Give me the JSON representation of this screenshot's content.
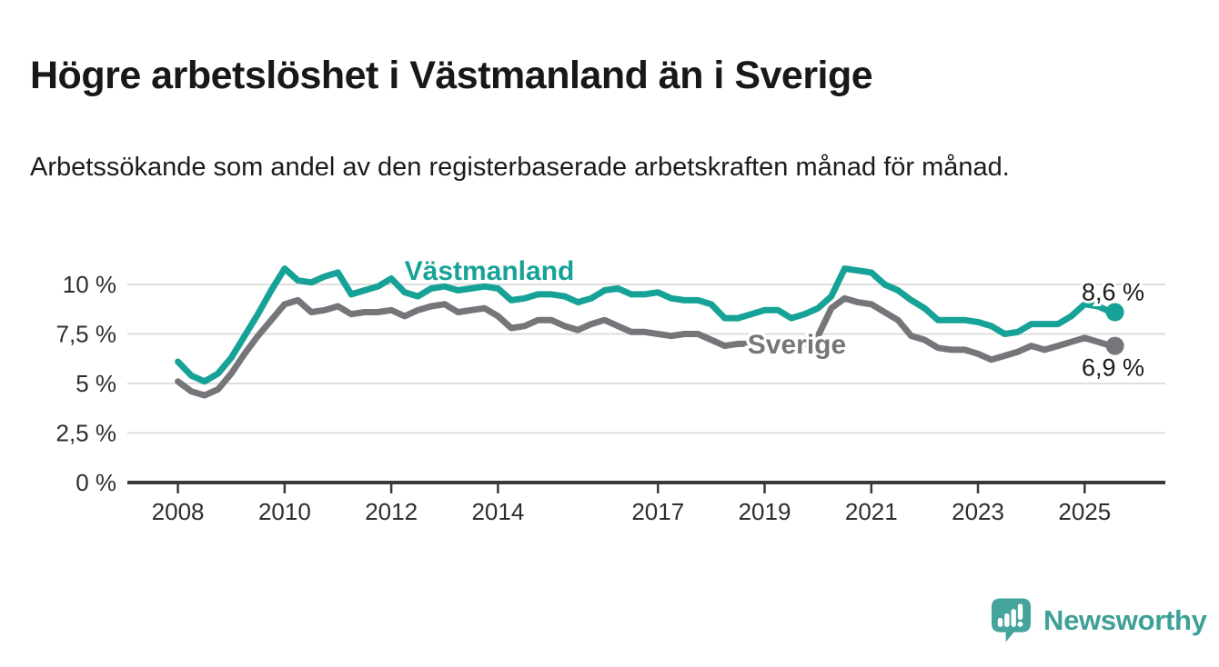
{
  "header": {
    "title": "Högre arbetslöshet i Västmanland än i Sverige",
    "subtitle": "Arbetssökande som andel av den registerbaserade arbetskraften månad för månad."
  },
  "chart_data": {
    "type": "line",
    "title": "Högre arbetslöshet i Västmanland än i Sverige",
    "subtitle": "Arbetssökande som andel av den registerbaserade arbetskraften månad för månad.",
    "unit": "%",
    "grid": true,
    "ylim": [
      0,
      11
    ],
    "xlim": [
      2007.9,
      2025.75
    ],
    "x": [
      2008,
      2008.25,
      2008.5,
      2008.75,
      2009,
      2009.25,
      2009.5,
      2009.75,
      2010,
      2010.25,
      2010.5,
      2010.75,
      2011,
      2011.25,
      2011.5,
      2011.75,
      2012,
      2012.25,
      2012.5,
      2012.75,
      2013,
      2013.25,
      2013.5,
      2013.75,
      2014,
      2014.25,
      2014.5,
      2014.75,
      2015,
      2015.25,
      2015.5,
      2015.75,
      2016,
      2016.25,
      2016.5,
      2016.75,
      2017,
      2017.25,
      2017.5,
      2017.75,
      2018,
      2018.25,
      2018.5,
      2018.75,
      2019,
      2019.25,
      2019.5,
      2019.75,
      2020,
      2020.25,
      2020.5,
      2020.75,
      2021,
      2021.25,
      2021.5,
      2021.75,
      2022,
      2022.25,
      2022.5,
      2022.75,
      2023,
      2023.25,
      2023.5,
      2023.75,
      2024,
      2024.25,
      2024.5,
      2024.75,
      2025,
      2025.25,
      2025.5
    ],
    "series": [
      {
        "name": "Sverige",
        "color": "#76767A",
        "end_label": "6,9 %",
        "end_value": 6.9,
        "values": [
          5.1,
          4.6,
          4.4,
          4.7,
          5.5,
          6.5,
          7.4,
          8.2,
          9.0,
          9.2,
          8.6,
          8.7,
          8.9,
          8.5,
          8.6,
          8.6,
          8.7,
          8.4,
          8.7,
          8.9,
          9.0,
          8.6,
          8.7,
          8.8,
          8.4,
          7.8,
          7.9,
          8.2,
          8.2,
          7.9,
          7.7,
          8.0,
          8.2,
          7.9,
          7.6,
          7.6,
          7.5,
          7.4,
          7.5,
          7.5,
          7.2,
          6.9,
          7.0,
          7.0,
          7.0,
          6.9,
          6.9,
          7.0,
          7.4,
          8.8,
          9.3,
          9.1,
          9.0,
          8.6,
          8.2,
          7.4,
          7.2,
          6.8,
          6.7,
          6.7,
          6.5,
          6.2,
          6.4,
          6.6,
          6.9,
          6.7,
          6.9,
          7.1,
          7.3,
          7.1,
          6.9
        ]
      },
      {
        "name": "Västmanland",
        "color": "#16A296",
        "end_label": "8,6 %",
        "end_value": 8.6,
        "values": [
          6.1,
          5.4,
          5.1,
          5.5,
          6.3,
          7.4,
          8.5,
          9.7,
          10.8,
          10.2,
          10.1,
          10.4,
          10.6,
          9.5,
          9.7,
          9.9,
          10.3,
          9.6,
          9.4,
          9.8,
          9.9,
          9.7,
          9.8,
          9.9,
          9.8,
          9.2,
          9.3,
          9.5,
          9.5,
          9.4,
          9.1,
          9.3,
          9.7,
          9.8,
          9.5,
          9.5,
          9.6,
          9.3,
          9.2,
          9.2,
          9.0,
          8.3,
          8.3,
          8.5,
          8.7,
          8.7,
          8.3,
          8.5,
          8.8,
          9.4,
          10.8,
          10.7,
          10.6,
          10.0,
          9.7,
          9.2,
          8.8,
          8.2,
          8.2,
          8.2,
          8.1,
          7.9,
          7.5,
          7.6,
          8.0,
          8.0,
          8.0,
          8.4,
          9.0,
          8.9,
          8.6
        ]
      }
    ],
    "yticks": [
      {
        "value": 0,
        "label": "0 %"
      },
      {
        "value": 2.5,
        "label": "2,5 %"
      },
      {
        "value": 5,
        "label": "5 %"
      },
      {
        "value": 7.5,
        "label": "7,5 %"
      },
      {
        "value": 10,
        "label": "10 %"
      }
    ],
    "xticks": [
      {
        "value": 2008,
        "label": "2008"
      },
      {
        "value": 2010,
        "label": "2010"
      },
      {
        "value": 2012,
        "label": "2012"
      },
      {
        "value": 2014,
        "label": "2014"
      },
      {
        "value": 2017,
        "label": "2017"
      },
      {
        "value": 2019,
        "label": "2019"
      },
      {
        "value": 2021,
        "label": "2021"
      },
      {
        "value": 2023,
        "label": "2023"
      },
      {
        "value": 2025,
        "label": "2025"
      }
    ],
    "inline_labels": [
      {
        "series": "Västmanland",
        "x": 538,
        "y": 308
      },
      {
        "series": "Sverige",
        "x": 876,
        "y": 389
      }
    ],
    "colors": {
      "grid": "#dedede",
      "axis": "#3a3a3e",
      "axis_text": "#2d2d31",
      "end_label_text": "#1a1a1a"
    }
  },
  "footer": {
    "brand": "Newsworthy"
  }
}
